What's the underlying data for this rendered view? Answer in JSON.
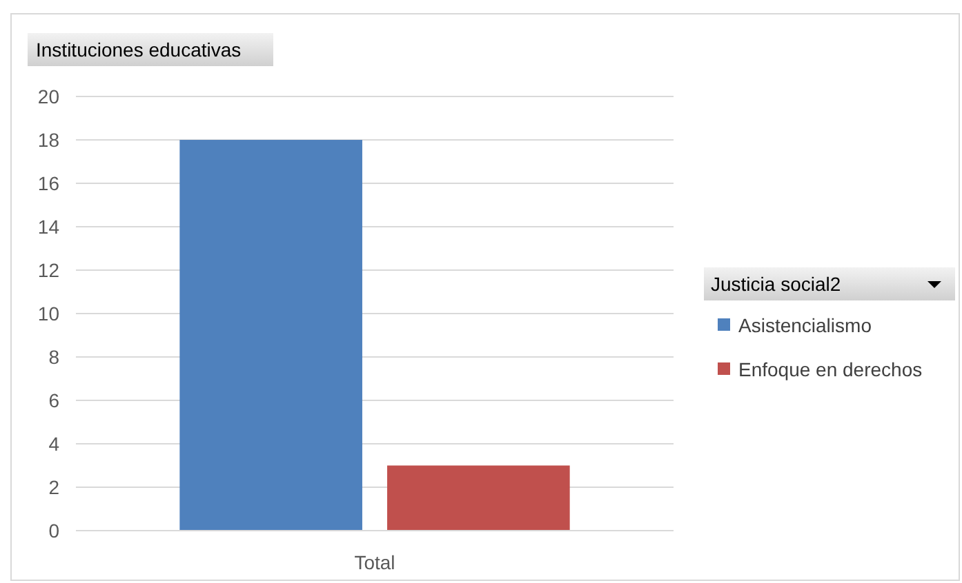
{
  "chart_data": {
    "type": "bar",
    "title": "Instituciones educativas",
    "legend_title": "Justicia social2",
    "categories": [
      "Total"
    ],
    "series": [
      {
        "name": "Asistencialismo",
        "color": "#4f81bd",
        "values": [
          18
        ]
      },
      {
        "name": "Enfoque en derechos",
        "color": "#c0504d",
        "values": [
          3
        ]
      }
    ],
    "ylim": [
      0,
      20
    ],
    "yticks": [
      0,
      2,
      4,
      6,
      8,
      10,
      12,
      14,
      16,
      18,
      20
    ],
    "grid": "y",
    "legend": "right"
  }
}
